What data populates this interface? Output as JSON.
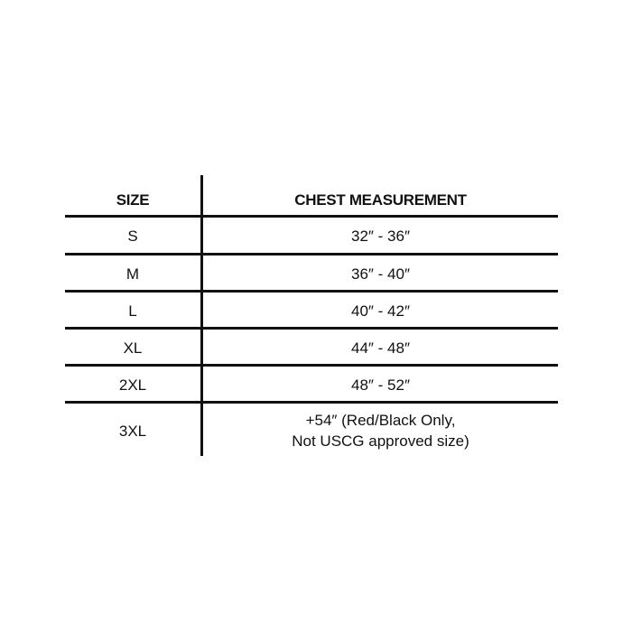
{
  "table": {
    "headers": [
      "SIZE",
      "CHEST MEASUREMENT"
    ],
    "rows": [
      {
        "size": "S",
        "chest": "32″ - 36″"
      },
      {
        "size": "M",
        "chest": "36″ - 40″"
      },
      {
        "size": "L",
        "chest": "40″ - 42″"
      },
      {
        "size": "XL",
        "chest": "44″ - 48″"
      },
      {
        "size": "2XL",
        "chest": "48″ - 52″"
      },
      {
        "size": "3XL",
        "chest": "+54″ (Red/Black Only,",
        "chest_line2": "Not USCG approved size)"
      }
    ]
  }
}
